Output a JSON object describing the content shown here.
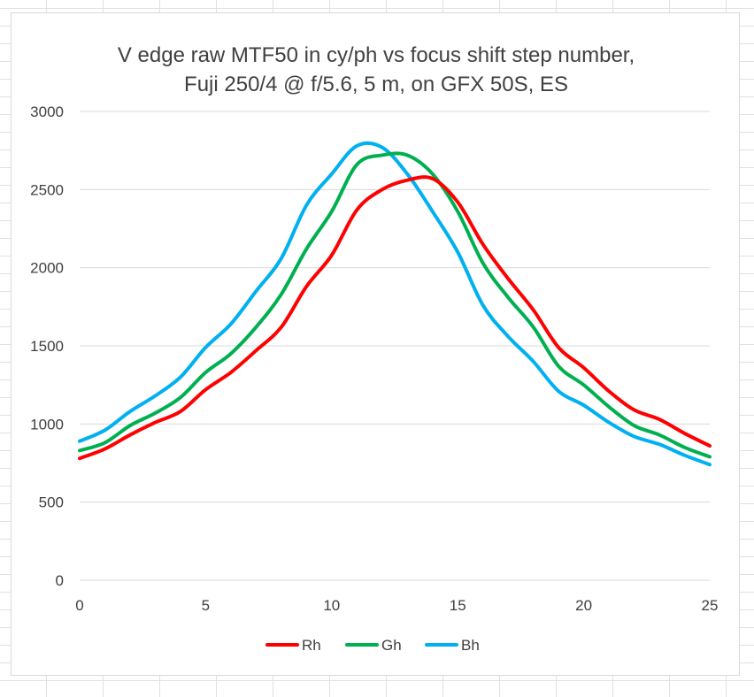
{
  "chart_data": {
    "type": "line",
    "title_lines": [
      "V edge raw MTF50 in cy/ph vs focus shift step number,",
      "Fuji 250/4 @ f/5.6, 5 m, on GFX 50S, ES"
    ],
    "xlabel": "",
    "ylabel": "",
    "xlim": [
      0,
      25
    ],
    "ylim": [
      0,
      3000
    ],
    "x_ticks": [
      0,
      5,
      10,
      15,
      20,
      25
    ],
    "y_ticks": [
      0,
      500,
      1000,
      1500,
      2000,
      2500,
      3000
    ],
    "grid": true,
    "legend_position": "bottom",
    "x": [
      0,
      1,
      2,
      3,
      4,
      5,
      6,
      7,
      8,
      9,
      10,
      11,
      12,
      13,
      14,
      15,
      16,
      17,
      18,
      19,
      20,
      21,
      22,
      23,
      24,
      25
    ],
    "series": [
      {
        "name": "Rh",
        "color": "#ff0000",
        "values": [
          780,
          840,
          930,
          1010,
          1080,
          1220,
          1330,
          1470,
          1620,
          1880,
          2080,
          2370,
          2500,
          2560,
          2570,
          2420,
          2150,
          1930,
          1730,
          1490,
          1360,
          1210,
          1090,
          1030,
          940,
          860
        ]
      },
      {
        "name": "Gh",
        "color": "#00b050",
        "values": [
          830,
          880,
          990,
          1070,
          1170,
          1330,
          1450,
          1620,
          1830,
          2120,
          2360,
          2660,
          2720,
          2720,
          2600,
          2360,
          2030,
          1810,
          1620,
          1370,
          1250,
          1110,
          990,
          930,
          850,
          790
        ]
      },
      {
        "name": "Bh",
        "color": "#00b0f0",
        "values": [
          890,
          960,
          1080,
          1180,
          1300,
          1490,
          1640,
          1850,
          2060,
          2400,
          2600,
          2780,
          2770,
          2600,
          2360,
          2100,
          1760,
          1560,
          1400,
          1210,
          1120,
          1010,
          920,
          870,
          800,
          740
        ]
      }
    ]
  }
}
